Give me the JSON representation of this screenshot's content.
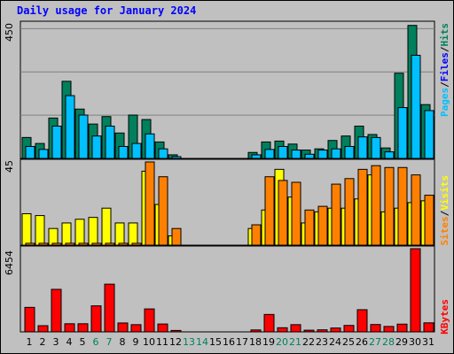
{
  "title": "Daily usage for January 2024",
  "chart_data": [
    {
      "type": "bar",
      "categories": [
        "1",
        "2",
        "3",
        "4",
        "5",
        "6",
        "7",
        "8",
        "9",
        "10",
        "11",
        "12",
        "13",
        "14",
        "15",
        "16",
        "17",
        "18",
        "19",
        "20",
        "21",
        "22",
        "23",
        "24",
        "25",
        "26",
        "27",
        "28",
        "29",
        "30",
        "31"
      ],
      "weekend_days": [
        "6",
        "7",
        "13",
        "14",
        "20",
        "21",
        "27",
        "28"
      ],
      "y_max_label": "450",
      "ylim": [
        0,
        450
      ],
      "series": [
        {
          "name": "Hits",
          "color": "#00805c",
          "values": [
            70,
            50,
            135,
            258,
            165,
            115,
            140,
            85,
            145,
            130,
            55,
            12,
            0,
            0,
            0,
            0,
            0,
            20,
            55,
            58,
            48,
            28,
            32,
            60,
            75,
            108,
            80,
            35,
            285,
            445,
            180
          ]
        },
        {
          "name": "Files",
          "color": "#00c0ff",
          "values": [
            40,
            30,
            108,
            210,
            145,
            75,
            108,
            40,
            50,
            82,
            32,
            6,
            0,
            0,
            0,
            0,
            0,
            12,
            30,
            40,
            28,
            14,
            28,
            32,
            40,
            72,
            70,
            22,
            170,
            345,
            160
          ]
        }
      ],
      "right_label_order": [
        "Pages",
        "Files",
        "Hits"
      ],
      "right_label_colors": {
        "Pages": "#00c0ff",
        "Files": "#0000ff",
        "Hits": "#00805c"
      }
    },
    {
      "type": "bar",
      "categories": [
        "1",
        "2",
        "3",
        "4",
        "5",
        "6",
        "7",
        "8",
        "9",
        "10",
        "11",
        "12",
        "13",
        "14",
        "15",
        "16",
        "17",
        "18",
        "19",
        "20",
        "21",
        "22",
        "23",
        "24",
        "25",
        "26",
        "27",
        "28",
        "29",
        "30",
        "31"
      ],
      "y_max_label": "45",
      "ylim": [
        0,
        45
      ],
      "series": [
        {
          "name": "Sites",
          "color": "#ffff00",
          "values": [
            17,
            16,
            9,
            12,
            14,
            15,
            20,
            12,
            12,
            40,
            22,
            5,
            0,
            0,
            0,
            0,
            0,
            9,
            19,
            41,
            26,
            12,
            18,
            20,
            20,
            25,
            38,
            18,
            20,
            23,
            24
          ]
        },
        {
          "name": "Visits",
          "color": "#ff8000",
          "values": [
            1,
            1,
            1,
            1,
            1,
            1,
            1,
            1,
            1,
            45,
            37,
            9,
            0,
            0,
            0,
            0,
            0,
            11,
            37,
            35,
            34,
            19,
            21,
            33,
            36,
            41,
            43,
            42,
            42,
            38,
            27
          ]
        }
      ],
      "right_label_order": [
        "Sites",
        "Visits"
      ],
      "right_label_colors": {
        "Sites": "#ff8000",
        "Visits": "#ffff00"
      }
    },
    {
      "type": "bar",
      "categories": [
        "1",
        "2",
        "3",
        "4",
        "5",
        "6",
        "7",
        "8",
        "9",
        "10",
        "11",
        "12",
        "13",
        "14",
        "15",
        "16",
        "17",
        "18",
        "19",
        "20",
        "21",
        "22",
        "23",
        "24",
        "25",
        "26",
        "27",
        "28",
        "29",
        "30",
        "31"
      ],
      "y_max_label": "6454",
      "ylim": [
        0,
        6454
      ],
      "series": [
        {
          "name": "KBytes",
          "color": "#ff0000",
          "values": [
            1900,
            480,
            3300,
            630,
            630,
            2020,
            3700,
            690,
            560,
            1780,
            610,
            110,
            0,
            0,
            0,
            0,
            0,
            150,
            1350,
            320,
            560,
            130,
            160,
            300,
            500,
            1720,
            570,
            420,
            600,
            6454,
            700
          ]
        }
      ],
      "right_label_order": [
        "KBytes"
      ],
      "right_label_colors": {
        "KBytes": "#ff0000"
      }
    }
  ],
  "colors": {
    "background": "#c0c0c0",
    "title": "#0000ff",
    "gridline": "#808080",
    "weekday_label": "#000000",
    "weekend_label": "#00805c"
  }
}
